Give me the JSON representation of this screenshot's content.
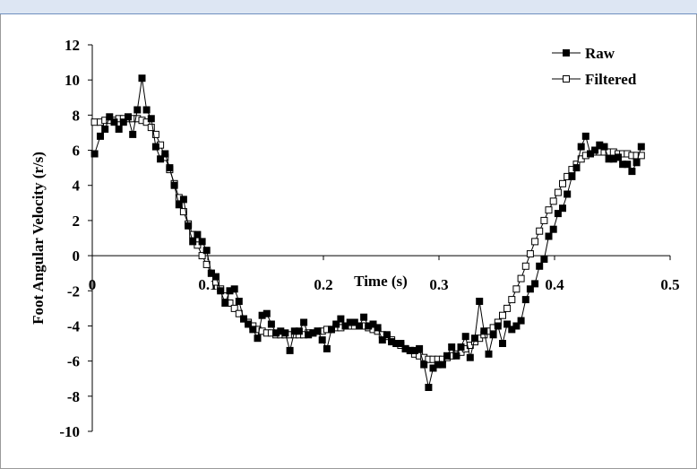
{
  "chart_data": {
    "type": "line",
    "title": "",
    "xlabel": "Time (s)",
    "ylabel": "Foot Angular Velocity (r/s)",
    "xlim": [
      0,
      0.5
    ],
    "ylim": [
      -10,
      12
    ],
    "xticks": [
      0,
      0.1,
      0.2,
      0.3,
      0.4,
      0.5
    ],
    "xtick_labels": [
      "0",
      "0.1",
      "0.2",
      "0.3",
      "0.4",
      "0.5"
    ],
    "yticks": [
      12,
      10,
      8,
      6,
      4,
      2,
      0,
      -2,
      -4,
      -6,
      -8,
      -10
    ],
    "ytick_labels": [
      "12",
      "10",
      "8",
      "6",
      "4",
      "2",
      "0",
      "-2",
      "-4",
      "-6",
      "-8",
      "-10"
    ],
    "grid": false,
    "legend_position": "top-right",
    "series": [
      {
        "name": "Raw",
        "marker": "filled-square",
        "color": "#000000",
        "x": [
          0.002,
          0.007,
          0.011,
          0.015,
          0.019,
          0.023,
          0.027,
          0.031,
          0.035,
          0.039,
          0.043,
          0.047,
          0.051,
          0.055,
          0.059,
          0.063,
          0.067,
          0.071,
          0.075,
          0.079,
          0.083,
          0.087,
          0.091,
          0.095,
          0.099,
          0.103,
          0.107,
          0.111,
          0.115,
          0.119,
          0.123,
          0.127,
          0.131,
          0.135,
          0.139,
          0.143,
          0.147,
          0.151,
          0.155,
          0.159,
          0.163,
          0.167,
          0.171,
          0.175,
          0.179,
          0.183,
          0.187,
          0.191,
          0.195,
          0.199,
          0.203,
          0.207,
          0.211,
          0.215,
          0.219,
          0.223,
          0.227,
          0.231,
          0.235,
          0.239,
          0.243,
          0.247,
          0.251,
          0.255,
          0.259,
          0.263,
          0.267,
          0.271,
          0.275,
          0.279,
          0.283,
          0.287,
          0.291,
          0.295,
          0.299,
          0.303,
          0.307,
          0.311,
          0.315,
          0.319,
          0.323,
          0.327,
          0.331,
          0.335,
          0.339,
          0.343,
          0.347,
          0.351,
          0.355,
          0.359,
          0.363,
          0.367,
          0.371,
          0.375,
          0.379,
          0.383,
          0.387,
          0.391,
          0.395,
          0.399,
          0.403,
          0.407,
          0.411,
          0.415,
          0.419,
          0.423,
          0.427,
          0.431,
          0.435,
          0.439,
          0.443,
          0.447,
          0.451,
          0.455,
          0.459,
          0.463,
          0.467,
          0.471,
          0.475
        ],
        "y": [
          5.8,
          6.8,
          7.2,
          7.9,
          7.6,
          7.2,
          7.6,
          7.9,
          6.9,
          8.3,
          10.1,
          8.3,
          7.8,
          6.2,
          5.5,
          5.8,
          5.0,
          4.0,
          2.9,
          3.2,
          1.7,
          0.8,
          1.2,
          0.8,
          0.3,
          -1.0,
          -1.2,
          -2.0,
          -2.7,
          -2.0,
          -1.9,
          -2.6,
          -3.6,
          -3.9,
          -4.2,
          -4.7,
          -3.4,
          -3.3,
          -3.9,
          -4.4,
          -4.3,
          -4.4,
          -5.4,
          -4.3,
          -4.3,
          -3.8,
          -4.5,
          -4.4,
          -4.3,
          -4.8,
          -5.3,
          -4.2,
          -3.9,
          -3.6,
          -4.0,
          -3.8,
          -3.8,
          -4.0,
          -3.5,
          -4.0,
          -3.9,
          -4.1,
          -4.8,
          -4.5,
          -4.9,
          -5.0,
          -5.0,
          -5.3,
          -5.4,
          -5.4,
          -5.3,
          -6.2,
          -7.5,
          -6.4,
          -6.2,
          -6.2,
          -5.7,
          -5.2,
          -5.7,
          -5.2,
          -4.6,
          -5.8,
          -4.7,
          -2.6,
          -4.3,
          -5.6,
          -4.5,
          -4.0,
          -5.0,
          -3.9,
          -4.2,
          -4.0,
          -3.7,
          -2.5,
          -1.9,
          -1.6,
          -0.6,
          -0.2,
          1.1,
          1.5,
          2.4,
          2.7,
          3.5,
          4.5,
          5.0,
          6.2,
          6.8,
          5.8,
          6.0,
          6.3,
          6.2,
          5.5,
          5.5,
          5.6,
          5.2,
          5.2,
          4.8,
          5.3,
          6.2
        ]
      },
      {
        "name": "Filtered",
        "marker": "open-square",
        "color": "#000000",
        "x": [
          0.002,
          0.007,
          0.011,
          0.015,
          0.019,
          0.023,
          0.027,
          0.031,
          0.035,
          0.039,
          0.043,
          0.047,
          0.051,
          0.055,
          0.059,
          0.063,
          0.067,
          0.071,
          0.075,
          0.079,
          0.083,
          0.087,
          0.091,
          0.095,
          0.099,
          0.103,
          0.107,
          0.111,
          0.115,
          0.119,
          0.123,
          0.127,
          0.131,
          0.135,
          0.139,
          0.143,
          0.147,
          0.151,
          0.155,
          0.159,
          0.163,
          0.167,
          0.171,
          0.175,
          0.179,
          0.183,
          0.187,
          0.191,
          0.195,
          0.199,
          0.203,
          0.207,
          0.211,
          0.215,
          0.219,
          0.223,
          0.227,
          0.231,
          0.235,
          0.239,
          0.243,
          0.247,
          0.251,
          0.255,
          0.259,
          0.263,
          0.267,
          0.271,
          0.275,
          0.279,
          0.283,
          0.287,
          0.291,
          0.295,
          0.299,
          0.303,
          0.307,
          0.311,
          0.315,
          0.319,
          0.323,
          0.327,
          0.331,
          0.335,
          0.339,
          0.343,
          0.347,
          0.351,
          0.355,
          0.359,
          0.363,
          0.367,
          0.371,
          0.375,
          0.379,
          0.383,
          0.387,
          0.391,
          0.395,
          0.399,
          0.403,
          0.407,
          0.411,
          0.415,
          0.419,
          0.423,
          0.427,
          0.431,
          0.435,
          0.439,
          0.443,
          0.447,
          0.451,
          0.455,
          0.459,
          0.463,
          0.467,
          0.471,
          0.475
        ],
        "y": [
          7.6,
          7.6,
          7.7,
          7.7,
          7.7,
          7.8,
          7.8,
          7.8,
          7.8,
          7.8,
          7.7,
          7.6,
          7.3,
          6.9,
          6.3,
          5.6,
          4.9,
          4.1,
          3.3,
          2.5,
          1.8,
          1.2,
          0.6,
          0.0,
          -0.5,
          -1.0,
          -1.5,
          -1.9,
          -2.3,
          -2.7,
          -3.0,
          -3.3,
          -3.6,
          -3.8,
          -4.0,
          -4.2,
          -4.3,
          -4.4,
          -4.4,
          -4.5,
          -4.5,
          -4.5,
          -4.5,
          -4.5,
          -4.5,
          -4.5,
          -4.4,
          -4.4,
          -4.3,
          -4.3,
          -4.2,
          -4.2,
          -4.1,
          -4.1,
          -4.0,
          -4.0,
          -4.0,
          -4.0,
          -4.0,
          -4.1,
          -4.2,
          -4.3,
          -4.5,
          -4.6,
          -4.8,
          -5.0,
          -5.1,
          -5.3,
          -5.4,
          -5.6,
          -5.7,
          -5.8,
          -5.9,
          -5.9,
          -5.9,
          -5.9,
          -5.8,
          -5.7,
          -5.6,
          -5.5,
          -5.3,
          -5.1,
          -4.9,
          -4.7,
          -4.5,
          -4.3,
          -4.1,
          -3.8,
          -3.4,
          -3.0,
          -2.5,
          -1.9,
          -1.3,
          -0.6,
          0.1,
          0.8,
          1.4,
          2.0,
          2.6,
          3.1,
          3.6,
          4.1,
          4.5,
          4.9,
          5.2,
          5.5,
          5.7,
          5.8,
          5.9,
          5.9,
          5.9,
          5.9,
          5.9,
          5.8,
          5.8,
          5.8,
          5.7,
          5.7,
          5.7
        ]
      }
    ]
  }
}
